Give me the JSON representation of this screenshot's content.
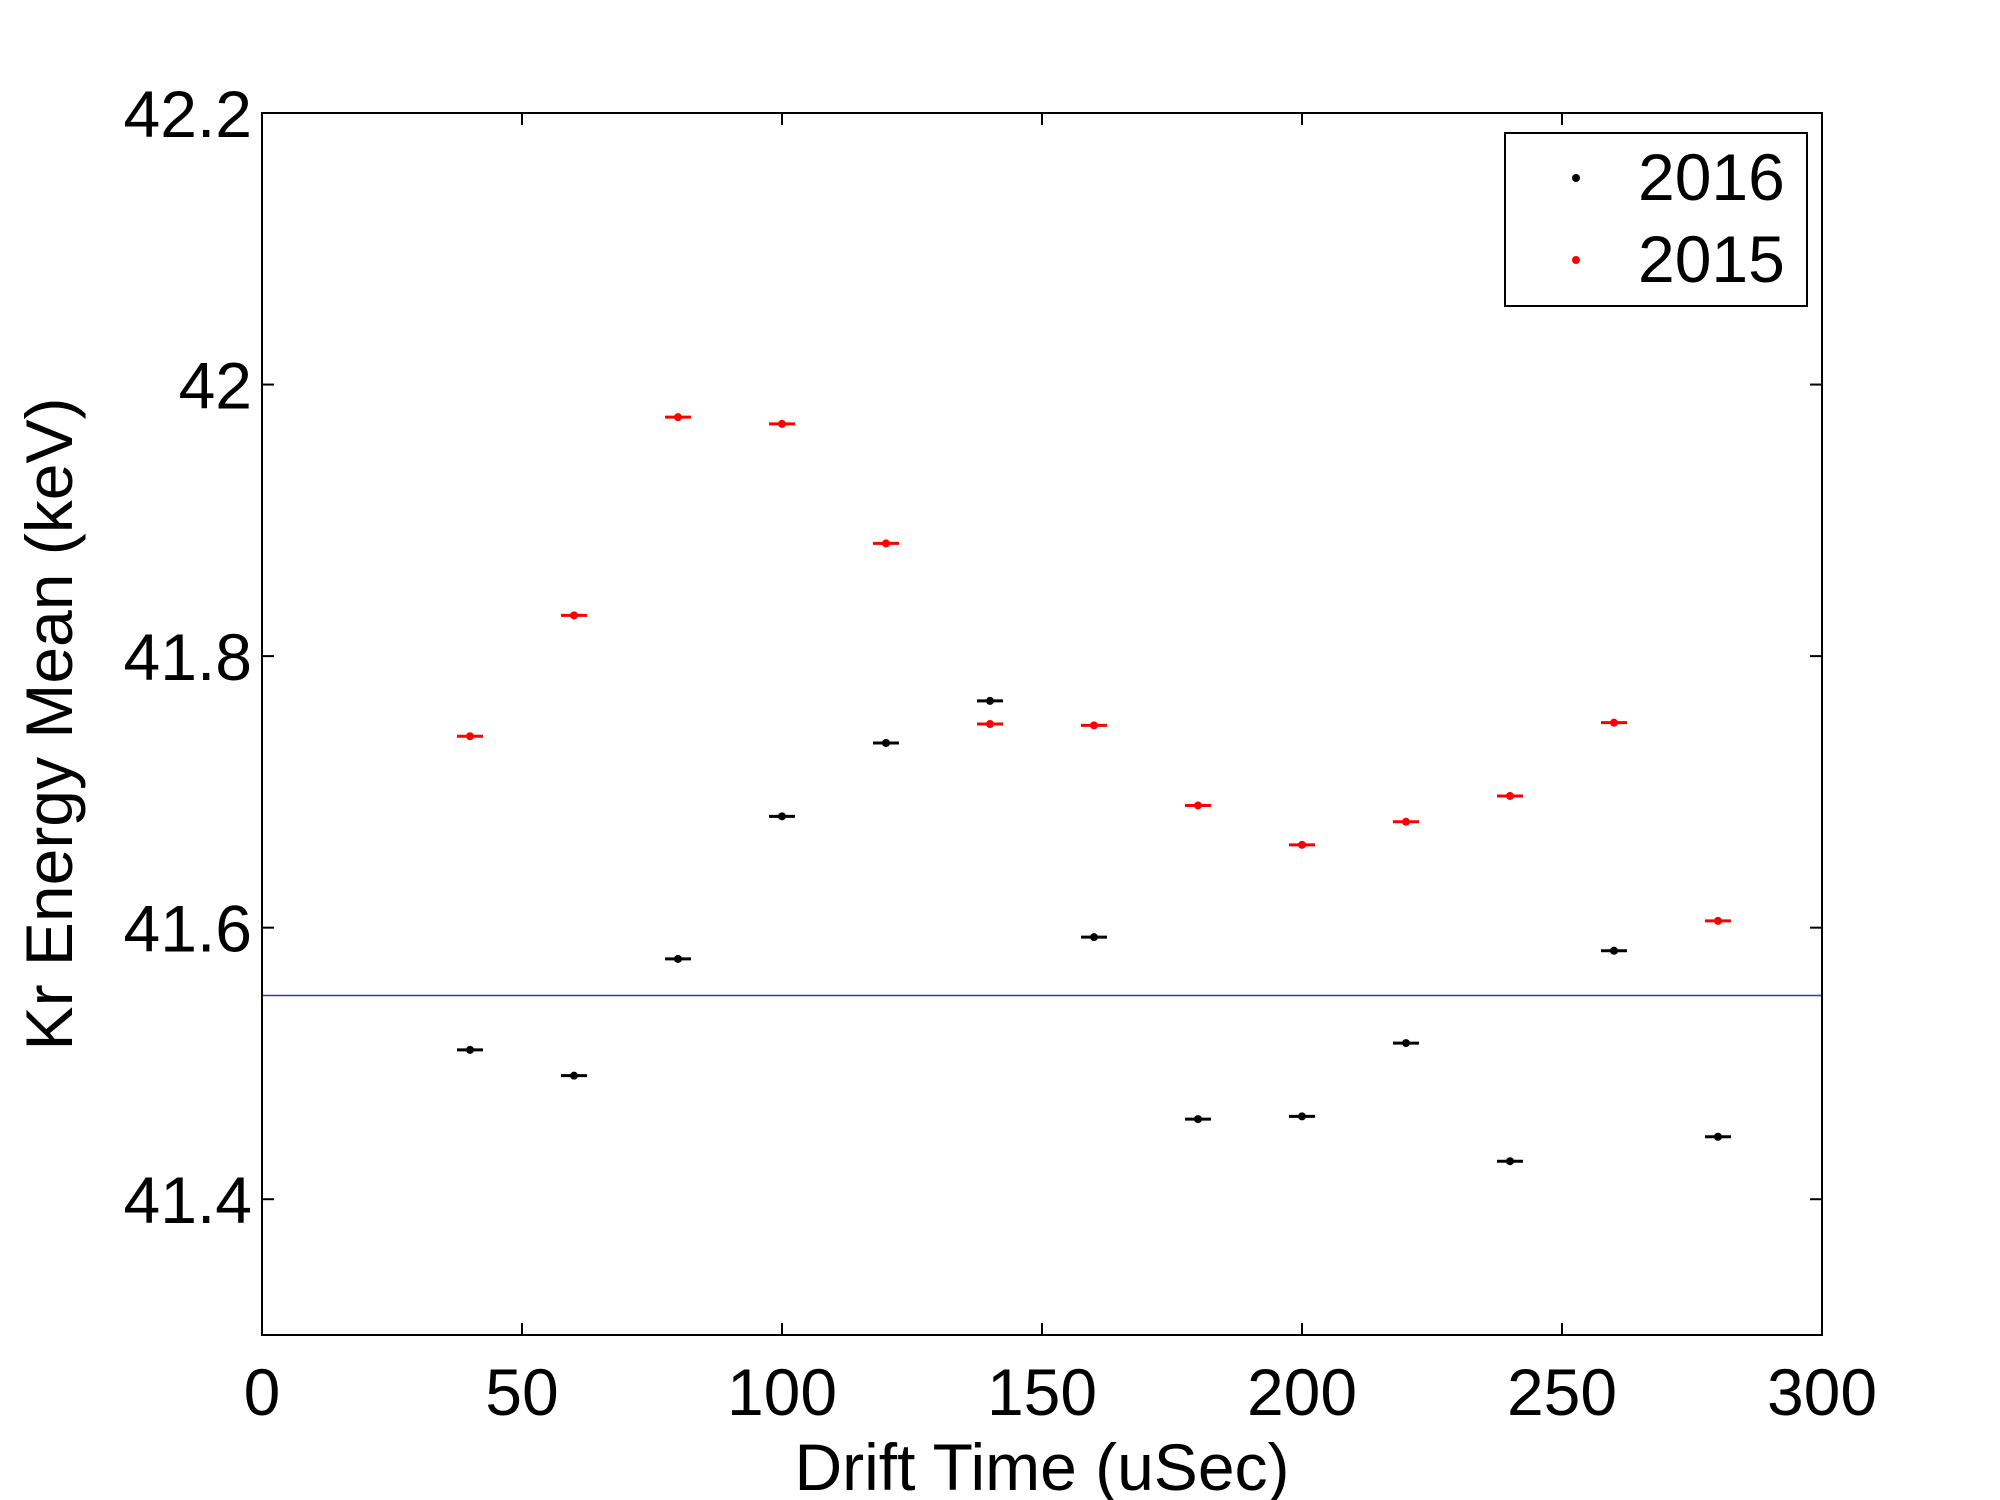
{
  "chart_data": {
    "type": "scatter",
    "title": "",
    "xlabel": "Drift Time (uSec)",
    "ylabel": "Kr Energy Mean (keV)",
    "xlim": [
      0,
      300
    ],
    "ylim": [
      41.3,
      42.2
    ],
    "xticks": [
      0,
      50,
      100,
      150,
      200,
      250,
      300
    ],
    "xtick_labels": [
      "0",
      "50",
      "100",
      "150",
      "200",
      "250",
      "300"
    ],
    "yticks": [
      41.4,
      41.6,
      41.8,
      42.0,
      42.2
    ],
    "ytick_labels": [
      "41.4",
      "41.6",
      "41.8",
      "42",
      "42.2"
    ],
    "grid": false,
    "legend_position": "top-right",
    "series": [
      {
        "name": "2016",
        "color": "#000000",
        "x": [
          40,
          60,
          80,
          100,
          120,
          140,
          160,
          180,
          200,
          220,
          240,
          260,
          280
        ],
        "y": [
          41.51,
          41.491,
          41.577,
          41.682,
          41.736,
          41.767,
          41.593,
          41.459,
          41.461,
          41.515,
          41.428,
          41.583,
          41.446
        ]
      },
      {
        "name": "2015",
        "color": "#ff0000",
        "x": [
          40,
          60,
          80,
          100,
          120,
          140,
          160,
          180,
          200,
          220,
          240,
          260,
          280
        ],
        "y": [
          41.741,
          41.83,
          41.976,
          41.971,
          41.883,
          41.75,
          41.749,
          41.69,
          41.661,
          41.678,
          41.697,
          41.751,
          41.605
        ]
      }
    ],
    "reference_line": {
      "y": 41.55,
      "color": "#3333cc"
    }
  }
}
